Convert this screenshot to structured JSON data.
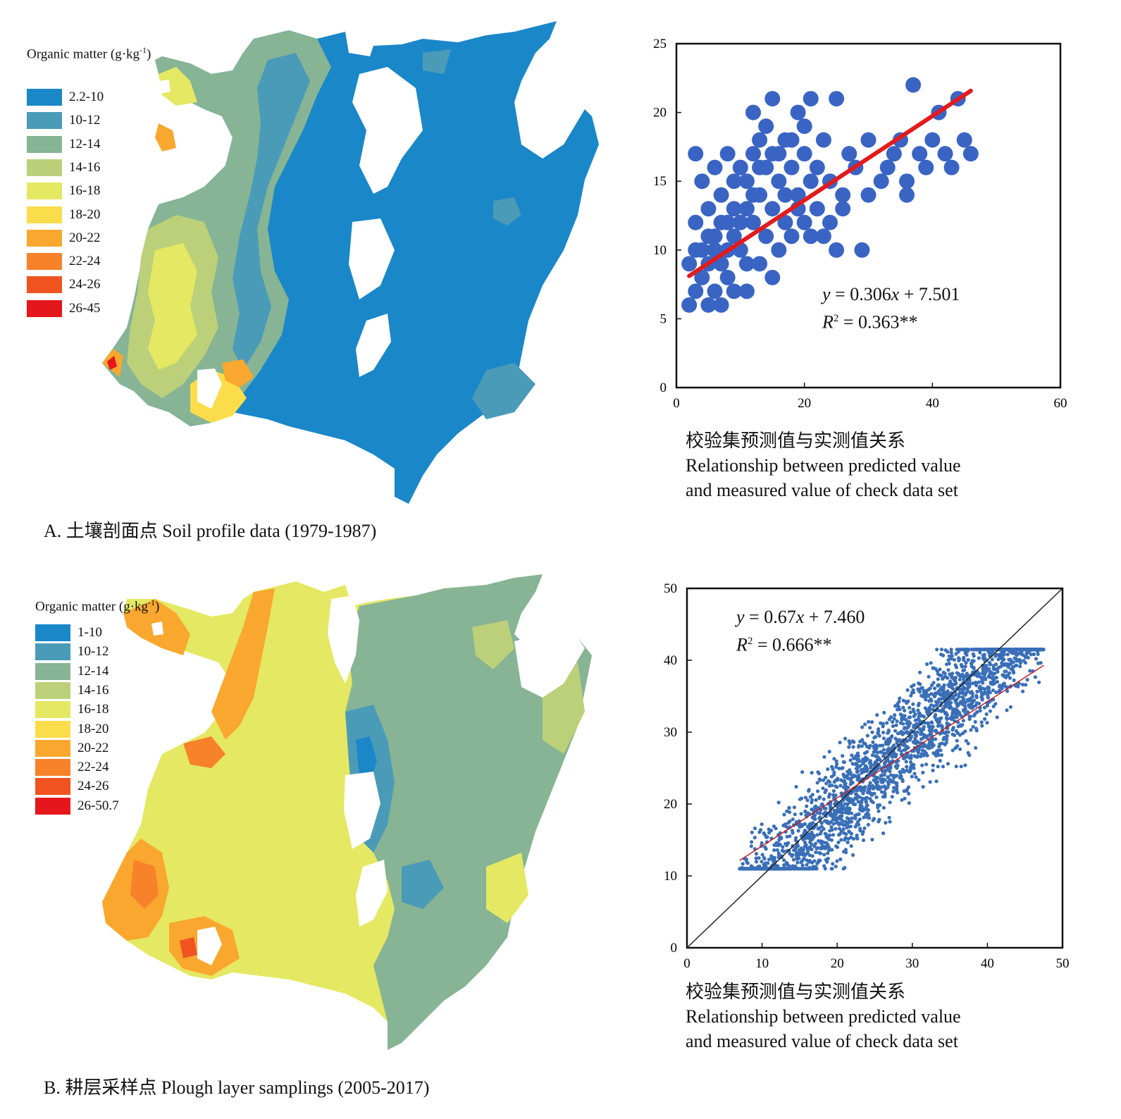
{
  "panels": [
    {
      "caption": "A. 土壤剖面点 Soil profile data (1979-1987)",
      "map": {
        "legend_title_main": "Organic matter (g·kg",
        "legend_title_sup": "-1",
        "legend_title_end": ")",
        "legend": [
          {
            "label": "2.2-10",
            "color": "#1a87c9"
          },
          {
            "label": "10-12",
            "color": "#4a9bb8"
          },
          {
            "label": "12-14",
            "color": "#86b495"
          },
          {
            "label": "14-16",
            "color": "#bcd07a"
          },
          {
            "label": "16-18",
            "color": "#e4e862"
          },
          {
            "label": "18-20",
            "color": "#fbdc4a"
          },
          {
            "label": "20-22",
            "color": "#f9a72e"
          },
          {
            "label": "22-24",
            "color": "#f7822a"
          },
          {
            "label": "24-26",
            "color": "#f0531f"
          },
          {
            "label": "26-45",
            "color": "#e5161c"
          }
        ]
      },
      "chart_data": {
        "type": "scatter",
        "caption_zh": "校验集预测值与实测值关系",
        "caption_en_1": "Relationship between predicted value",
        "caption_en_2": "and measured value of check data set",
        "equation_y": "y",
        "equation_rest": " = 0.306",
        "equation_x": "x",
        "equation_end": " + 7.501",
        "r2_r": "R",
        "r2_sup": "2",
        "r2_value": " = 0.363**",
        "xlim": [
          0,
          60
        ],
        "ylim": [
          0,
          25
        ],
        "xticks": [
          "0",
          "20",
          "40",
          "60"
        ],
        "yticks": [
          "0",
          "5",
          "10",
          "15",
          "20",
          "25"
        ],
        "point_color": "#3a64c4",
        "fit_color": "#e31a1c",
        "fit_line": {
          "slope": 0.306,
          "intercept": 7.501,
          "x_range": [
            2,
            46
          ]
        },
        "points": [
          [
            2,
            6
          ],
          [
            3,
            7
          ],
          [
            4,
            8
          ],
          [
            2,
            9
          ],
          [
            5,
            6
          ],
          [
            6,
            7
          ],
          [
            4,
            10
          ],
          [
            7,
            9
          ],
          [
            3,
            12
          ],
          [
            6,
            11
          ],
          [
            8,
            8
          ],
          [
            5,
            13
          ],
          [
            9,
            11
          ],
          [
            7,
            14
          ],
          [
            10,
            10
          ],
          [
            8,
            12
          ],
          [
            11,
            13
          ],
          [
            9,
            15
          ],
          [
            12,
            12
          ],
          [
            10,
            16
          ],
          [
            13,
            14
          ],
          [
            11,
            9
          ],
          [
            14,
            11
          ],
          [
            12,
            17
          ],
          [
            15,
            13
          ],
          [
            13,
            18
          ],
          [
            16,
            15
          ],
          [
            6,
            16
          ],
          [
            4,
            15
          ],
          [
            3,
            17
          ],
          [
            8,
            17
          ],
          [
            14,
            19
          ],
          [
            12,
            20
          ],
          [
            17,
            18
          ],
          [
            18,
            16
          ],
          [
            19,
            20
          ],
          [
            20,
            17
          ],
          [
            22,
            16
          ],
          [
            24,
            15
          ],
          [
            26,
            13
          ],
          [
            28,
            16
          ],
          [
            30,
            18
          ],
          [
            33,
            16
          ],
          [
            35,
            18
          ],
          [
            36,
            15
          ],
          [
            38,
            17
          ],
          [
            40,
            18
          ],
          [
            41,
            20
          ],
          [
            43,
            16
          ],
          [
            45,
            18
          ],
          [
            46,
            17
          ],
          [
            44,
            21
          ],
          [
            37,
            22
          ],
          [
            25,
            21
          ],
          [
            21,
            21
          ],
          [
            15,
            21
          ],
          [
            16,
            10
          ],
          [
            18,
            11
          ],
          [
            20,
            12
          ],
          [
            22,
            13
          ],
          [
            23,
            11
          ],
          [
            25,
            10
          ],
          [
            29,
            10
          ],
          [
            30,
            14
          ],
          [
            32,
            15
          ],
          [
            34,
            17
          ],
          [
            36,
            14
          ],
          [
            39,
            16
          ],
          [
            42,
            17
          ],
          [
            5,
            9
          ],
          [
            7,
            6
          ],
          [
            9,
            7
          ],
          [
            11,
            7
          ],
          [
            13,
            9
          ],
          [
            15,
            8
          ],
          [
            17,
            12
          ],
          [
            19,
            14
          ],
          [
            21,
            15
          ],
          [
            23,
            18
          ],
          [
            27,
            17
          ],
          [
            6,
            10
          ],
          [
            8,
            10
          ],
          [
            10,
            12
          ],
          [
            12,
            14
          ],
          [
            14,
            16
          ],
          [
            16,
            17
          ],
          [
            18,
            18
          ],
          [
            20,
            19
          ],
          [
            3,
            10
          ],
          [
            5,
            11
          ],
          [
            7,
            12
          ],
          [
            9,
            13
          ],
          [
            11,
            15
          ],
          [
            13,
            16
          ],
          [
            15,
            17
          ],
          [
            17,
            14
          ],
          [
            19,
            13
          ],
          [
            21,
            11
          ],
          [
            24,
            12
          ],
          [
            26,
            14
          ]
        ]
      }
    },
    {
      "caption": "B. 耕层采样点 Plough layer samplings (2005-2017)",
      "map": {
        "legend_title_main": "Organic matter (g·kg",
        "legend_title_sup": "-1",
        "legend_title_end": ")",
        "legend": [
          {
            "label": "1-10",
            "color": "#1a87c9"
          },
          {
            "label": "10-12",
            "color": "#4a9bb8"
          },
          {
            "label": "12-14",
            "color": "#86b495"
          },
          {
            "label": "14-16",
            "color": "#bcd07a"
          },
          {
            "label": "16-18",
            "color": "#e4e862"
          },
          {
            "label": "18-20",
            "color": "#fbdc4a"
          },
          {
            "label": "20-22",
            "color": "#f9a72e"
          },
          {
            "label": "22-24",
            "color": "#f7822a"
          },
          {
            "label": "24-26",
            "color": "#f0531f"
          },
          {
            "label": "26-50.7",
            "color": "#e5161c"
          }
        ]
      },
      "chart_data": {
        "type": "scatter",
        "caption_zh": "校验集预测值与实测值关系",
        "caption_en_1": "Relationship between predicted value",
        "caption_en_2": "and measured value of check data set",
        "equation_y": "y",
        "equation_rest": " = 0.67",
        "equation_x": "x",
        "equation_end": " + 7.460",
        "r2_r": "R",
        "r2_sup": "2",
        "r2_value": " = 0.666**",
        "xlim": [
          0,
          50
        ],
        "ylim": [
          0,
          50
        ],
        "xticks": [
          "0",
          "10",
          "20",
          "30",
          "40",
          "50"
        ],
        "yticks": [
          "0",
          "10",
          "20",
          "30",
          "40",
          "50"
        ],
        "point_color": "#3a6fb8",
        "fit_color": "#c0202a",
        "one_to_one_color": "#222222",
        "fit_line": {
          "slope": 0.67,
          "intercept": 7.46,
          "x_range": [
            7,
            47.5
          ]
        },
        "cloud": {
          "x_range": [
            7,
            47.5
          ],
          "center_slope": 0.67,
          "center_intercept": 7.46,
          "spread": 6.5,
          "count": 2600
        }
      }
    }
  ]
}
